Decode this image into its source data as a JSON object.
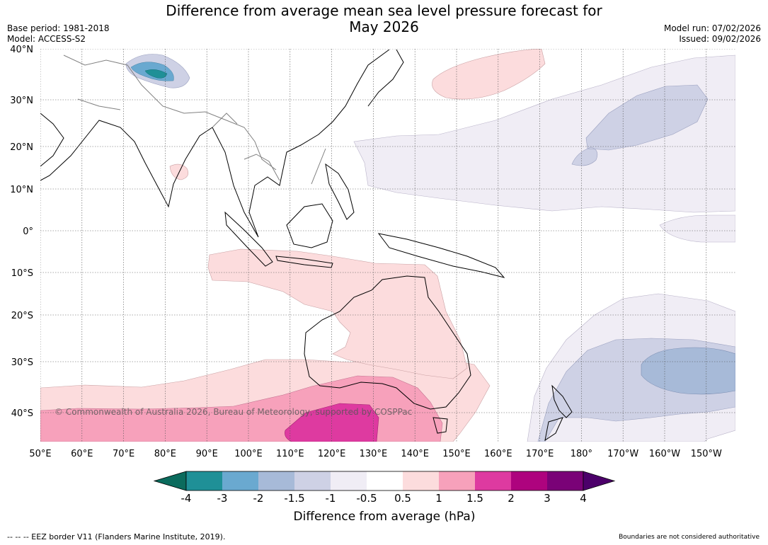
{
  "header": {
    "title_line1": "Difference from average mean sea level pressure forecast for",
    "title_line2": "May 2026",
    "base_period": "Base period: 1981-2018",
    "model": "Model: ACCESS-S2",
    "model_run": "Model run: 07/02/2026",
    "issued": "Issued: 09/02/2026"
  },
  "chart_data": {
    "type": "heatmap",
    "title": "Difference from average mean sea level pressure forecast for May 2026",
    "units": "hPa",
    "colorbar_label": "Difference from average (hPa)",
    "colorbar_ticks": [
      "-4",
      "-3",
      "-2",
      "-1.5",
      "-1",
      "-0.5",
      "0.5",
      "1",
      "1.5",
      "2",
      "3",
      "4"
    ],
    "colorbar_colors": [
      "#0b6b5d",
      "#1f9097",
      "#6aa9d0",
      "#a7bad8",
      "#ced1e5",
      "#f0edf5",
      "#ffffff",
      "#fcdcdd",
      "#f7a1bb",
      "#de3aa0",
      "#ae037e",
      "#7a0277",
      "#4c006a"
    ],
    "x_ticks": [
      "50°E",
      "60°E",
      "70°E",
      "80°E",
      "90°E",
      "100°E",
      "110°E",
      "120°E",
      "130°E",
      "140°E",
      "150°E",
      "160°E",
      "170°E",
      "180°",
      "170°W",
      "160°W",
      "150°W"
    ],
    "y_ticks": [
      "40°N",
      "30°N",
      "20°N",
      "10°N",
      "0°",
      "10°S",
      "20°S",
      "30°S",
      "40°S"
    ],
    "lon_range": [
      50,
      217
    ],
    "lat_range": [
      -46,
      40
    ],
    "features": [
      {
        "name": "positive-anomaly-north-pacific",
        "level": "0.5 to 1"
      },
      {
        "name": "negative-anomaly-north-pacific",
        "level": "-1 to -0.5"
      },
      {
        "name": "negative-anomaly-north-pacific-core",
        "level": "-1.5 to -1"
      },
      {
        "name": "positive-anomaly-southern-ocean",
        "level": "1 to 1.5"
      },
      {
        "name": "positive-anomaly-southern-ocean-core",
        "level": "1.5 to 2"
      },
      {
        "name": "negative-anomaly-south-pacific",
        "level": "-1.5 to -1"
      },
      {
        "name": "negative-anomaly-south-pacific-core",
        "level": "-2 to -1.5"
      },
      {
        "name": "negative-anomaly-himalaya",
        "level": "-4 to -2"
      }
    ],
    "watermark": "© Commonwealth of Australia 2026, Bureau of Meteorology, supported by COSPPac"
  },
  "footer": {
    "eez_note": "-- -- -- EEZ border V11 (Flanders Marine Institute, 2019).",
    "disclaimer": "Boundaries are not considered authoritative"
  }
}
